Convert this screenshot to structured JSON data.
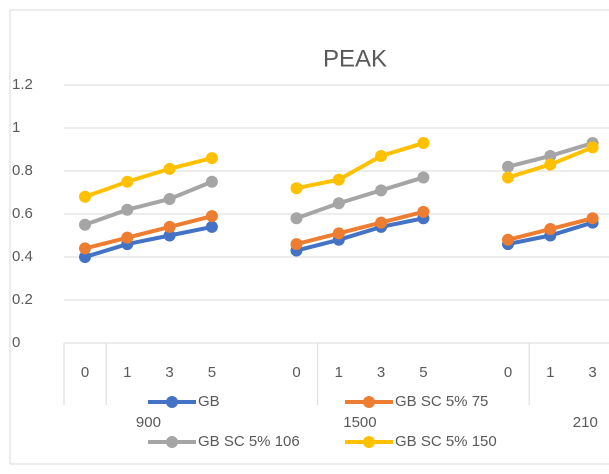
{
  "chart_data": {
    "type": "line",
    "title": "PEAK",
    "categories": [
      "0",
      "1",
      "3",
      "5",
      null,
      "0",
      "1",
      "3",
      "5",
      null,
      "0",
      "1",
      "3"
    ],
    "groups": [
      {
        "label": "900",
        "start": 0,
        "end": 3
      },
      {
        "label": "1500",
        "start": 5,
        "end": 8
      },
      {
        "label": "210",
        "start": 10,
        "end": 12
      }
    ],
    "series": [
      {
        "name": "GB",
        "color": "#4472c4",
        "values": [
          0.4,
          0.46,
          0.5,
          0.54,
          null,
          0.43,
          0.48,
          0.54,
          0.58,
          null,
          0.46,
          0.5,
          0.56
        ]
      },
      {
        "name": "GB SC 5% 75",
        "color": "#ed7d31",
        "values": [
          0.44,
          0.49,
          0.54,
          0.59,
          null,
          0.46,
          0.51,
          0.56,
          0.61,
          null,
          0.48,
          0.53,
          0.58
        ]
      },
      {
        "name": "GB SC 5% 106",
        "color": "#a5a5a5",
        "values": [
          0.55,
          0.62,
          0.67,
          0.75,
          null,
          0.58,
          0.65,
          0.71,
          0.77,
          null,
          0.82,
          0.87,
          0.93
        ]
      },
      {
        "name": "GB SC 5% 150",
        "color": "#ffc000",
        "values": [
          0.68,
          0.75,
          0.81,
          0.86,
          null,
          0.72,
          0.76,
          0.87,
          0.93,
          null,
          0.77,
          0.83,
          0.91
        ]
      }
    ],
    "ylim": [
      0,
      1.2
    ],
    "yticks": [
      0,
      0.2,
      0.4,
      0.6,
      0.8,
      1,
      1.2
    ],
    "grid": true
  }
}
